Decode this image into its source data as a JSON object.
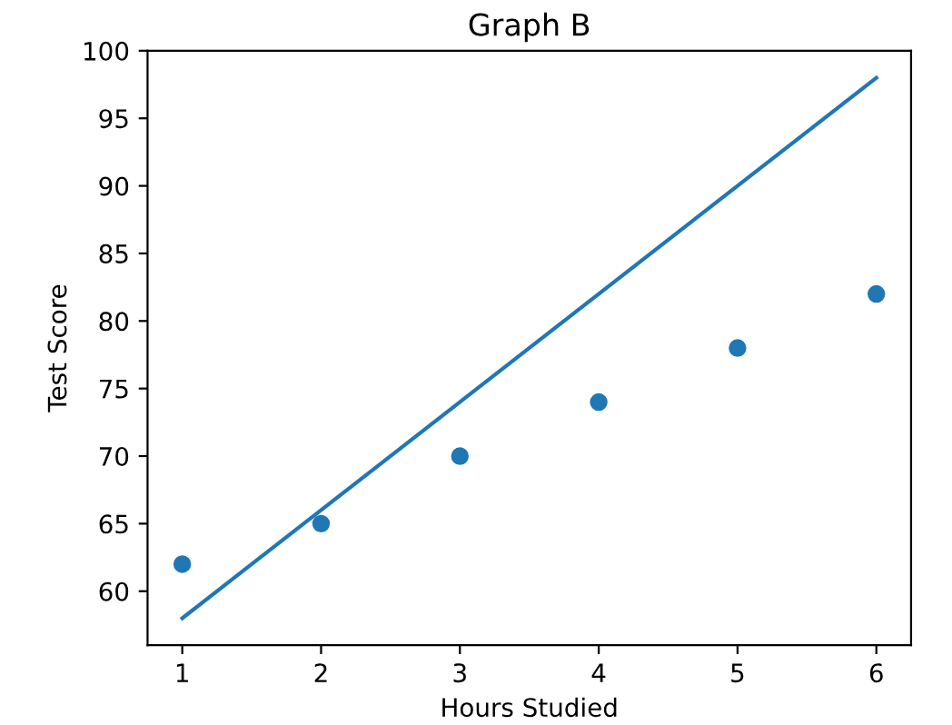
{
  "chart_data": {
    "type": "scatter",
    "title": "Graph B",
    "xlabel": "Hours Studied",
    "ylabel": "Test Score",
    "x": [
      1,
      2,
      3,
      4,
      5,
      6
    ],
    "series": [
      {
        "color": "#1f77b4",
        "values": [
          62,
          65,
          70,
          74,
          78,
          82
        ],
        "marker": "circle"
      },
      {
        "type": "line",
        "color": "#1f77b4",
        "x": [
          1,
          6
        ],
        "values": [
          58,
          98
        ],
        "marker": "none",
        "line_style": "solid"
      }
    ],
    "xlim": [
      0.75,
      6.25
    ],
    "xticks": [
      1,
      2,
      3,
      4,
      5,
      6
    ],
    "ylim": [
      56,
      100
    ],
    "yticks": [
      60,
      65,
      70,
      75,
      80,
      85,
      90,
      95,
      100
    ],
    "grid": false,
    "legend": false
  }
}
